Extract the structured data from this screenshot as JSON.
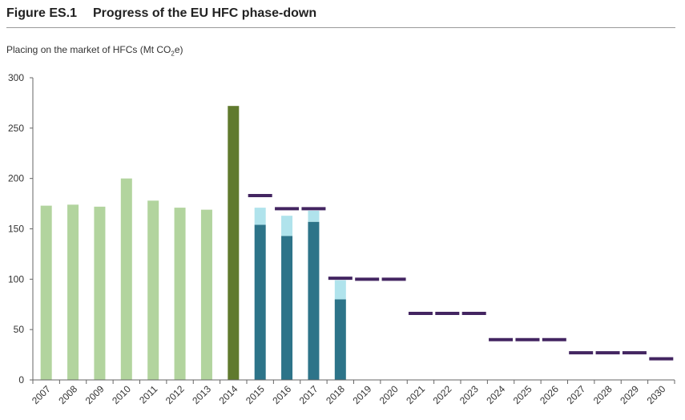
{
  "figure": {
    "label": "Figure ES.1",
    "title": "Progress of the EU HFC phase-down",
    "ylabel_main": "Placing on the market of HFCs (Mt CO",
    "ylabel_sub": "2",
    "ylabel_end": "e)"
  },
  "colors": {
    "historic": "#b2d49e",
    "baseline": "#607a2e",
    "placed": "#2d7489",
    "additional": "#b0e3ec",
    "limit": "#432561",
    "axis": "#666666"
  },
  "chart_data": {
    "type": "bar",
    "title": "Progress of the EU HFC phase-down",
    "ylabel": "Placing on the market of HFCs (Mt CO2e)",
    "ylim": [
      0,
      300
    ],
    "yticks": [
      0,
      50,
      100,
      150,
      200,
      250,
      300
    ],
    "categories": [
      "2007",
      "2008",
      "2009",
      "2010",
      "2011",
      "2012",
      "2013",
      "2014",
      "2015",
      "2016",
      "2017",
      "2018",
      "2019",
      "2020",
      "2021",
      "2022",
      "2023",
      "2024",
      "2025",
      "2026",
      "2027",
      "2028",
      "2029",
      "2030"
    ],
    "series": [
      {
        "key": "historic",
        "values": [
          173,
          174,
          172,
          200,
          178,
          171,
          169,
          null,
          null,
          null,
          null,
          null,
          null,
          null,
          null,
          null,
          null,
          null,
          null,
          null,
          null,
          null,
          null,
          null
        ]
      },
      {
        "key": "baseline",
        "values": [
          null,
          null,
          null,
          null,
          null,
          null,
          null,
          272,
          null,
          null,
          null,
          null,
          null,
          null,
          null,
          null,
          null,
          null,
          null,
          null,
          null,
          null,
          null,
          null
        ]
      },
      {
        "key": "placed",
        "stack": "s1",
        "values": [
          null,
          null,
          null,
          null,
          null,
          null,
          null,
          null,
          154,
          143,
          157,
          80,
          null,
          null,
          null,
          null,
          null,
          null,
          null,
          null,
          null,
          null,
          null,
          null
        ]
      },
      {
        "key": "additional",
        "stack": "s1",
        "values": [
          null,
          null,
          null,
          null,
          null,
          null,
          null,
          null,
          17,
          20,
          11,
          19,
          null,
          null,
          null,
          null,
          null,
          null,
          null,
          null,
          null,
          null,
          null,
          null
        ]
      },
      {
        "key": "limit",
        "marker": "hline",
        "values": [
          null,
          null,
          null,
          null,
          null,
          null,
          null,
          null,
          183,
          170,
          170,
          101,
          100,
          100,
          66,
          66,
          66,
          40,
          40,
          40,
          27,
          27,
          27,
          21
        ]
      }
    ],
    "grid": false,
    "legend": "none"
  }
}
